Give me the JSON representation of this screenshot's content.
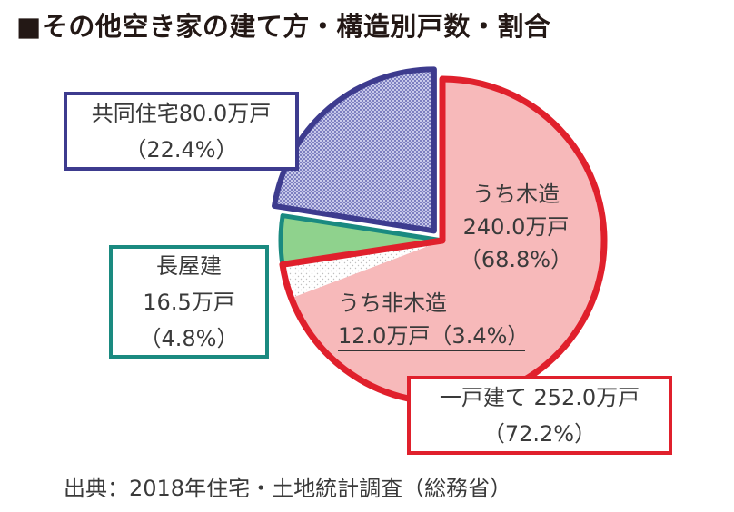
{
  "title": "■その他空き家の建て方・構造別戸数・割合",
  "chart_data": {
    "type": "pie",
    "title": "■その他空き家の建て方・構造別戸数・割合",
    "unit": "万戸",
    "slices": [
      {
        "name": "うち木造",
        "value": 240.0,
        "percent": 68.8,
        "group": "一戸建て",
        "color": "#f7b9ba",
        "border": "#e0202c"
      },
      {
        "name": "うち非木造",
        "value": 12.0,
        "percent": 3.4,
        "group": "一戸建て",
        "color": "#ffffff",
        "border": "#e0202c"
      },
      {
        "name": "長屋建",
        "value": 16.5,
        "percent": 4.8,
        "color": "#8fd28d",
        "border": "#1a8a80"
      },
      {
        "name": "共同住宅",
        "value": 80.0,
        "percent": 22.4,
        "color": "#a9aad8",
        "border": "#3d3b8e"
      }
    ],
    "groups": [
      {
        "name": "一戸建て",
        "value": 252.0,
        "percent": 72.2
      }
    ]
  },
  "labels": {
    "kyodo_line1": "共同住宅80.0万戸",
    "kyodo_line2": "（22.4%）",
    "nagaya_line1": "長屋建",
    "nagaya_line2": "16.5万戸",
    "nagaya_line3": "（4.8%）",
    "mokuzo_line1": "うち木造",
    "mokuzo_line2": "240.0万戸",
    "mokuzo_line3": "（68.8%）",
    "himokuzo_line1": "うち非木造",
    "himokuzo_line2": "12.0万戸（3.4%）",
    "ikko_line1": "一戸建て 252.0万戸",
    "ikko_line2": "（72.2%）"
  },
  "source": "出典：2018年住宅・土地統計調査（総務省）"
}
